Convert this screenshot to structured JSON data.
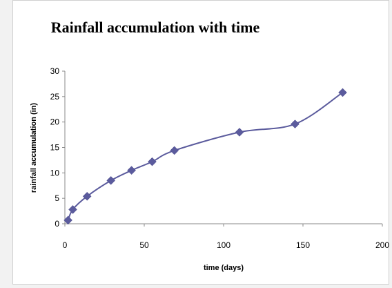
{
  "chart_data": {
    "type": "line",
    "title": "Rainfall accumulation with time",
    "xlabel": "time (days)",
    "ylabel": "rainfall accumulation (in)",
    "xlim": [
      0,
      200
    ],
    "ylim": [
      0,
      30
    ],
    "x_ticks": [
      0,
      50,
      100,
      150,
      200
    ],
    "y_ticks": [
      0,
      5,
      10,
      15,
      20,
      25,
      30
    ],
    "grid": false,
    "smooth": true,
    "marker": "diamond",
    "series": [
      {
        "color": "#5b5b9d",
        "x": [
          2,
          5,
          14,
          29,
          42,
          55,
          69,
          110,
          145,
          175
        ],
        "y": [
          0.7,
          2.8,
          5.4,
          8.5,
          10.5,
          12.2,
          14.4,
          18.0,
          19.6,
          25.8
        ]
      }
    ]
  }
}
